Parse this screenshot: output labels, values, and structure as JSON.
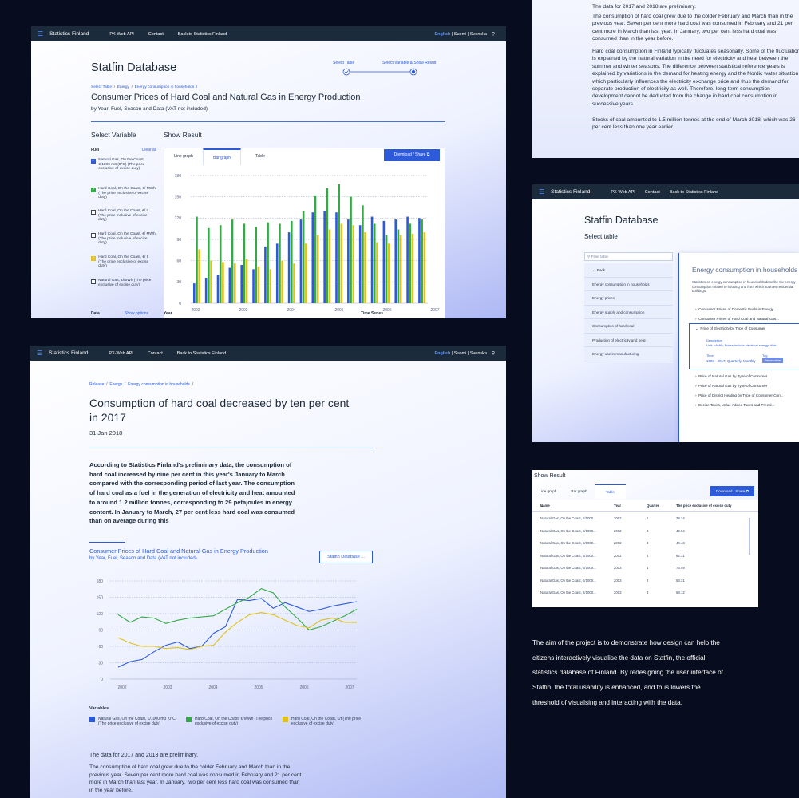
{
  "nav": {
    "brand": "Statistics Finland",
    "links": [
      "PX-Web API",
      "Contact",
      "Back to Statistics Finland"
    ],
    "lang_active": "English",
    "lang_rest": " | Suomi | Svenska"
  },
  "database_view": {
    "title": "Statfin Database",
    "steps": [
      "Select Table",
      "Select Variable & Show Result"
    ],
    "breadcrumb": [
      "Select Table",
      "Energy",
      "Energy consumption in households"
    ],
    "table_title": "Consumer Prices of Hard Coal and Natural Gas in Energy Production",
    "table_subtitle": "by Year, Fuel, Season and Data (VAT not included)",
    "select_variable": "Select Variable",
    "show_result": "Show Result",
    "fuel_label": "Fuel",
    "clear_all": "Clear all",
    "variables": [
      {
        "label": "Natural Gas, On the Coast, €/1000 m3 (0°C) (The price exclusive of excise duty)",
        "checked": true,
        "color": "#2c5ad8"
      },
      {
        "label": "Hard Coal, On the Coast, €/ MWh (The price exclusive of excise duty)",
        "checked": true,
        "color": "#35a847"
      },
      {
        "label": "Hard Coal, On the Coast, €/ t (The price inclusive of excise duty)",
        "checked": false,
        "color": ""
      },
      {
        "label": "Hard Coal, On the Coast, €/ MWh (The price inclusive of excise duty)",
        "checked": false,
        "color": ""
      },
      {
        "label": "Hard Coal, On the Coast, €/ t (The price exclusive of excise duty)",
        "checked": true,
        "color": "#e0c21a"
      },
      {
        "label": "Natural Gas, €/MWh (The price exclusive of excise duty)",
        "checked": false,
        "color": ""
      }
    ],
    "tabs": [
      "Line graph",
      "Bar graph",
      "Table"
    ],
    "active_tab": "Bar graph",
    "download_label": "Download / Share",
    "bottom_labels": [
      "Data",
      "Show options",
      "Year",
      "Time Series"
    ]
  },
  "release_view": {
    "breadcrumb": [
      "Release",
      "Energy",
      "Energy consumption in households"
    ],
    "headline": "Consumption of hard coal decreased by ten per cent in 2017",
    "date": "31 Jan 2018",
    "lead": "According to Statistics Finland's preliminary data, the consumption of hard coal increased by nine per cent in this year's January to March compared with the corresponding period of last year. The consumption of hard coal as a fuel in the generation of electricity and heat amounted to around 1.2 million tonnes, corresponding to 29 petajoules in energy content. In January to March, 27 per cent less hard coal was consumed than on average during this",
    "chart_title": "Consumer Prices of Hard Coal and Natural Gas in Energy Production",
    "chart_subtitle": "by Year, Fuel, Season and Data (VAT not included)",
    "statfin_button": "Statfin Database ...",
    "variables_label": "Variables",
    "legend": [
      "Natural Gas, On the Coast, €/1000 m3 (0°C) (The price exclusive of excise duty)",
      "Hard Coal, On the Coast, €/MWh (The price exclusive of excise duty)",
      "Hard Coal, On the Coast, €/t (The price exclusive of excise duty)"
    ],
    "para1": "The data for 2017 and 2018 are preliminary.",
    "para2": "The consumption of hard coal grew due to the colder February and March than in the previous year. Seven per cent more hard coal was consumed in February and 21 per cent more in March than last year. In January, two per cent less hard coal was consumed than in the year before."
  },
  "text_view": {
    "p1": "The data for 2017 and 2018 are preliminary.",
    "p2": "The consumption of hard coal grew due to the colder February and March than in the previous year. Seven per cent more hard coal was consumed in February and 21 per cent more in March than last year. In January, two per cent less hard coal was consumed than in the year before.",
    "p3": "Hard coal consumption in Finland typically fluctuates seasonally. Some of the fluctuation is explained by the natural variation in the need for electricity and heat between the summer and winter seasons. The difference between statistical reference years is explained by variations in the demand for heating energy and the Nordic water situation, which particularly influences the electricity exchange price and thus the demand for separate production of electricity as well. Therefore, long-term consumption development cannot be deducted from the change in hard coal consumption in successive years.",
    "p4": "Stocks of coal amounted to 1.5 million tonnes at the end of March 2018, which was 26 per cent less than one year earlier."
  },
  "select_table_view": {
    "nav_links": [
      "PX-Web API",
      "Contact",
      "Back to Statistics Finland"
    ],
    "title": "Statfin Database",
    "subtitle": "Select table",
    "filter_placeholder": "Filter table",
    "back": "Back",
    "items": [
      "Energy consumption in households",
      "Energy prices",
      "Energy supply and consumption",
      "Consumption of hard coal",
      "Production of electricity and heat",
      "Energy use in manufacturing"
    ],
    "detail_title": "Energy consumption in households",
    "detail_desc": "Statistics on energy consumption in households describe the energy consumption related to housing and from which sources residential buildings.",
    "detail_items": [
      "Consumer Prices of Domestic Fuels in Energy...",
      "Consumer Prices of Hard Coal and Natural Gas...",
      "Price of Electricity by Type of Consumer"
    ],
    "expanded_desc_label": "Description",
    "expanded_desc": "Unit: c/kWh; Prices include electrical energy, distr...",
    "expanded_time_label": "Time",
    "expanded_time": "1998 - 2017, Quarterly, Monthly",
    "expanded_tag_label": "Tag",
    "expanded_tag": "Renewable",
    "more_items": [
      "Price of Natural Gas by Type of Consumer",
      "Price of Natural Gas by Type of Consumer",
      "Price of District Heating by Type of Consumer Con...",
      "Excise Taxes, Value Added Taxes and Precal..."
    ]
  },
  "table_view": {
    "show_result": "Show Result",
    "tabs": [
      "Line graph",
      "Bar graph",
      "Table"
    ],
    "active_tab": "Table",
    "download_label": "Download / Share",
    "headers": [
      "Name",
      "Year",
      "Quarter",
      "The price exclusive of excise duty"
    ],
    "rows": [
      [
        "Natural Gas, On the Coast, €/1000...",
        "2002",
        "1",
        "38.24"
      ],
      [
        "Natural Gas, On the Coast, €/1000...",
        "2002",
        "2",
        "42.94"
      ],
      [
        "Natural Gas, On the Coast, €/1000...",
        "2002",
        "3",
        "44.43"
      ],
      [
        "Natural Gas, On the Coast, €/1000...",
        "2002",
        "4",
        "62.31"
      ],
      [
        "Natural Gas, On the Coast, €/1000...",
        "2003",
        "1",
        "76.49"
      ],
      [
        "Natural Gas, On the Coast, €/1000...",
        "2003",
        "2",
        "53.31"
      ],
      [
        "Natural Gas, On the Coast, €/1000...",
        "2003",
        "3",
        "58.12"
      ]
    ]
  },
  "about": {
    "text": "The aim of the project is to demonstrate how design can help the citizens interactively visualise the data on Statfin, the official statistics database of Finland. By redesigning the user interface of Statfin, the total usability is enhanced, and thus lowers the threshold of visualsing and interacting with the data."
  },
  "chart_data": [
    {
      "type": "bar",
      "yticks": [
        0,
        30,
        60,
        90,
        120,
        150,
        180
      ],
      "ylim": [
        0,
        180
      ],
      "xticks": [
        "2002",
        "2003",
        "2004",
        "2005",
        "2006",
        "2007",
        "2008"
      ],
      "grid": true,
      "series": [
        {
          "color": "#2c5ad8",
          "values": [
            28,
            36,
            40,
            50,
            54,
            48,
            80,
            84,
            100,
            118,
            128,
            130,
            128,
            118,
            110,
            122,
            116,
            118,
            122,
            120
          ]
        },
        {
          "color": "#35a847",
          "values": [
            122,
            106,
            110,
            118,
            112,
            108,
            114,
            112,
            116,
            130,
            152,
            162,
            168,
            150,
            138,
            112,
            96,
            104,
            112,
            118
          ]
        },
        {
          "color": "#e0c21a",
          "values": [
            76,
            60,
            58,
            56,
            62,
            52,
            48,
            60,
            56,
            84,
            96,
            104,
            112,
            110,
            100,
            86,
            84,
            96,
            98,
            100
          ]
        }
      ]
    },
    {
      "type": "line",
      "yticks": [
        0,
        30,
        60,
        90,
        120,
        150,
        180
      ],
      "ylim": [
        0,
        180
      ],
      "xticks": [
        "2002",
        "2003",
        "2004",
        "2005",
        "2006",
        "2007"
      ],
      "grid": true,
      "series": [
        {
          "name": "Natural Gas, On the Coast, €/1000 m3 (0°C) (The price exclusive of excise duty)",
          "color": "#2c5ad8",
          "values": [
            22,
            32,
            36,
            50,
            62,
            68,
            56,
            60,
            84,
            96,
            146,
            144,
            148,
            130,
            140,
            132,
            124,
            128,
            134,
            138,
            142
          ]
        },
        {
          "name": "Hard Coal, On the Coast, €/MWh (The price exclusive of excise duty)",
          "color": "#35a847",
          "values": [
            118,
            104,
            114,
            112,
            102,
            108,
            112,
            114,
            116,
            128,
            140,
            150,
            166,
            158,
            132,
            112,
            90,
            96,
            106,
            116,
            128
          ]
        },
        {
          "name": "Hard Coal, On the Coast, €/t (The price exclusive of excise duty)",
          "color": "#e0c21a",
          "values": [
            76,
            66,
            60,
            60,
            56,
            58,
            54,
            60,
            62,
            86,
            104,
            118,
            122,
            118,
            108,
            98,
            94,
            108,
            112,
            104,
            104
          ]
        }
      ]
    }
  ]
}
